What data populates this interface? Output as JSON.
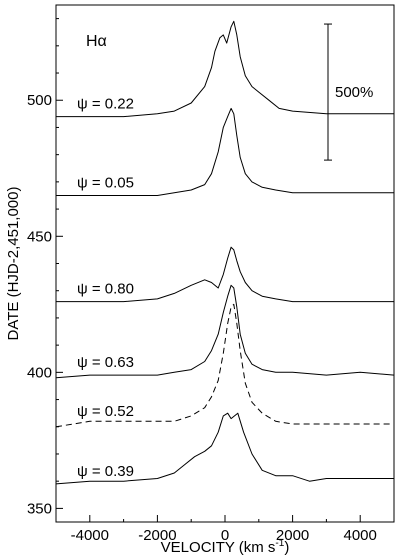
{
  "chart_data": {
    "type": "line",
    "panel_label": "Hα",
    "xlabel": "VELOCITY (km s",
    "xlabel_sup": "-1",
    "xlabel_end": ")",
    "ylabel": "DATE (HJD-2,451,000)",
    "xlim": [
      -5000,
      5000
    ],
    "ylim": [
      345,
      535
    ],
    "x_ticks": [
      -4000,
      -2000,
      0,
      2000,
      4000
    ],
    "y_ticks": [
      350,
      400,
      450,
      500
    ],
    "scale_bar": {
      "label": "500%",
      "length": 50
    },
    "series": [
      {
        "phase_label": "ψ = 0.39",
        "style": "solid",
        "baseline": 359,
        "points": [
          [
            -5000,
            359
          ],
          [
            -4000,
            360
          ],
          [
            -3000,
            360
          ],
          [
            -2000,
            361
          ],
          [
            -1500,
            363
          ],
          [
            -1200,
            366
          ],
          [
            -900,
            369
          ],
          [
            -600,
            371
          ],
          [
            -400,
            373
          ],
          [
            -200,
            378
          ],
          [
            -50,
            384
          ],
          [
            80,
            385
          ],
          [
            180,
            383
          ],
          [
            280,
            384
          ],
          [
            380,
            385
          ],
          [
            550,
            378
          ],
          [
            800,
            370
          ],
          [
            1100,
            364
          ],
          [
            1500,
            362
          ],
          [
            2000,
            362
          ],
          [
            2500,
            360
          ],
          [
            3000,
            361
          ],
          [
            4000,
            361
          ],
          [
            5000,
            361
          ]
        ]
      },
      {
        "phase_label": "ψ = 0.52",
        "style": "dashed",
        "baseline": 381,
        "points": [
          [
            -5000,
            380
          ],
          [
            -4000,
            382
          ],
          [
            -3000,
            382
          ],
          [
            -2000,
            382
          ],
          [
            -1500,
            382
          ],
          [
            -1000,
            384
          ],
          [
            -600,
            387
          ],
          [
            -400,
            391
          ],
          [
            -200,
            397
          ],
          [
            -50,
            407
          ],
          [
            80,
            418
          ],
          [
            180,
            424
          ],
          [
            260,
            425
          ],
          [
            350,
            418
          ],
          [
            450,
            408
          ],
          [
            600,
            396
          ],
          [
            800,
            389
          ],
          [
            1100,
            385
          ],
          [
            1500,
            382
          ],
          [
            2000,
            381
          ],
          [
            3000,
            381
          ],
          [
            4000,
            381
          ],
          [
            5000,
            381
          ]
        ]
      },
      {
        "phase_label": "ψ = 0.63",
        "style": "solid",
        "baseline": 399,
        "points": [
          [
            -5000,
            398
          ],
          [
            -4000,
            399
          ],
          [
            -3000,
            399
          ],
          [
            -2000,
            399
          ],
          [
            -1500,
            400
          ],
          [
            -1000,
            401
          ],
          [
            -600,
            404
          ],
          [
            -400,
            408
          ],
          [
            -200,
            414
          ],
          [
            -50,
            422
          ],
          [
            80,
            428
          ],
          [
            180,
            432
          ],
          [
            260,
            431
          ],
          [
            350,
            424
          ],
          [
            450,
            414
          ],
          [
            600,
            407
          ],
          [
            800,
            403
          ],
          [
            1100,
            401
          ],
          [
            1500,
            400
          ],
          [
            2000,
            400
          ],
          [
            3000,
            399
          ],
          [
            4000,
            400
          ],
          [
            5000,
            399
          ]
        ]
      },
      {
        "phase_label": "ψ = 0.80",
        "style": "solid",
        "baseline": 426,
        "points": [
          [
            -5000,
            426
          ],
          [
            -4000,
            426
          ],
          [
            -3000,
            426
          ],
          [
            -2000,
            427
          ],
          [
            -1500,
            429
          ],
          [
            -1000,
            432
          ],
          [
            -600,
            434
          ],
          [
            -400,
            433
          ],
          [
            -200,
            431
          ],
          [
            -50,
            436
          ],
          [
            80,
            442
          ],
          [
            180,
            446
          ],
          [
            260,
            445
          ],
          [
            350,
            441
          ],
          [
            450,
            437
          ],
          [
            600,
            433
          ],
          [
            800,
            430
          ],
          [
            1100,
            428
          ],
          [
            1500,
            427
          ],
          [
            2000,
            426
          ],
          [
            3000,
            426
          ],
          [
            4000,
            426
          ],
          [
            5000,
            426
          ]
        ]
      },
      {
        "phase_label": "ψ = 0.05",
        "style": "solid",
        "baseline": 465,
        "points": [
          [
            -5000,
            465
          ],
          [
            -4000,
            465
          ],
          [
            -3000,
            465
          ],
          [
            -2000,
            465
          ],
          [
            -1500,
            466
          ],
          [
            -1000,
            467
          ],
          [
            -600,
            469
          ],
          [
            -400,
            473
          ],
          [
            -200,
            481
          ],
          [
            -50,
            490
          ],
          [
            80,
            494
          ],
          [
            180,
            497
          ],
          [
            260,
            495
          ],
          [
            350,
            487
          ],
          [
            450,
            479
          ],
          [
            600,
            473
          ],
          [
            800,
            470
          ],
          [
            1100,
            468
          ],
          [
            1500,
            467
          ],
          [
            2000,
            466
          ],
          [
            3000,
            466
          ],
          [
            4000,
            466
          ],
          [
            5000,
            466
          ]
        ]
      },
      {
        "phase_label": "ψ = 0.22",
        "style": "solid",
        "baseline": 494,
        "points": [
          [
            -5000,
            494
          ],
          [
            -4000,
            494
          ],
          [
            -3000,
            494
          ],
          [
            -2000,
            495
          ],
          [
            -1500,
            496
          ],
          [
            -1000,
            499
          ],
          [
            -600,
            505
          ],
          [
            -400,
            512
          ],
          [
            -300,
            518
          ],
          [
            -150,
            523
          ],
          [
            -50,
            524
          ],
          [
            50,
            521
          ],
          [
            180,
            527
          ],
          [
            260,
            529
          ],
          [
            350,
            524
          ],
          [
            450,
            516
          ],
          [
            600,
            509
          ],
          [
            800,
            505
          ],
          [
            1000,
            503
          ],
          [
            1300,
            500
          ],
          [
            1600,
            497
          ],
          [
            2000,
            496
          ],
          [
            3000,
            495
          ],
          [
            4000,
            495
          ],
          [
            5000,
            495
          ]
        ]
      }
    ]
  }
}
